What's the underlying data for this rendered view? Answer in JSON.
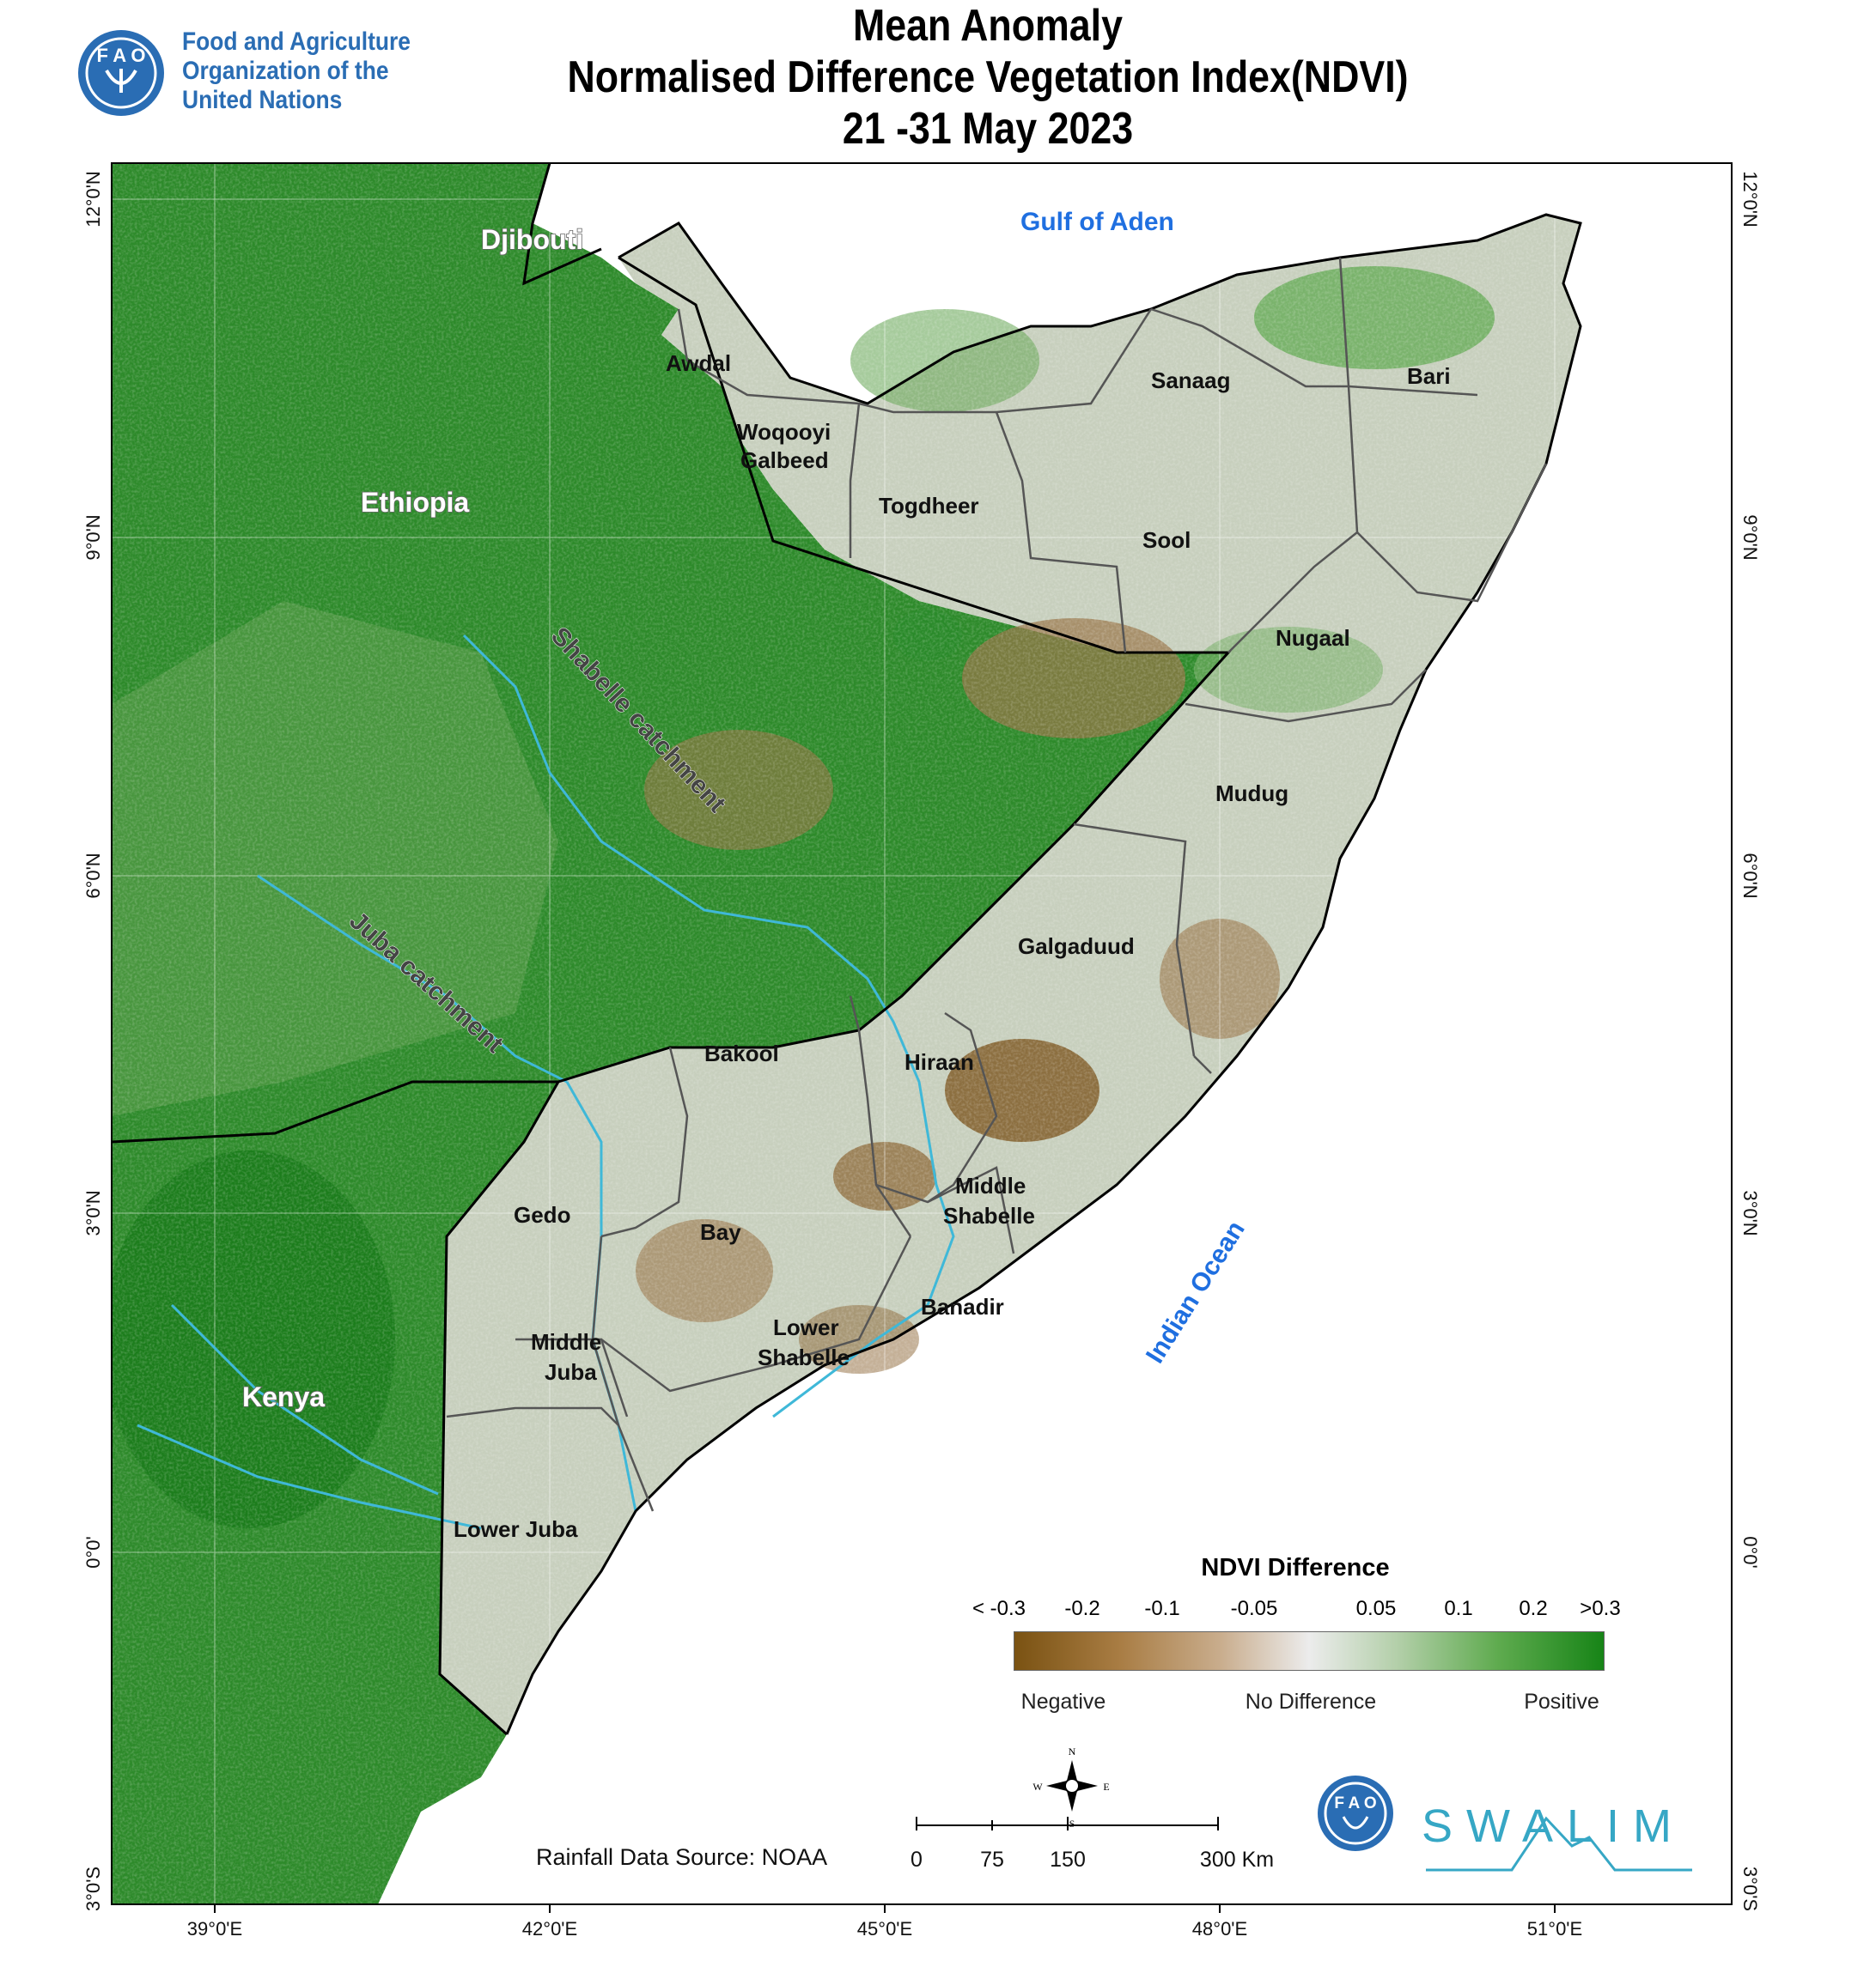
{
  "org": {
    "name_line1": "Food and Agriculture",
    "name_line2": "Organization of the",
    "name_line3": "United Nations",
    "logo_letters": "FAO",
    "logo_motto": "FIAT PANIS"
  },
  "title": {
    "line1": "Mean Anomaly",
    "line2": "Normalised Difference Vegetation Index(NDVI)",
    "line3": "21 -31 May 2023"
  },
  "water_bodies": {
    "gulf": "Gulf of Aden",
    "ocean": "Indian Ocean"
  },
  "countries": {
    "djibouti": "Djibouti",
    "ethiopia": "Ethiopia",
    "kenya": "Kenya"
  },
  "catchments": {
    "shabelle": "Shabelle catchment",
    "juba": "Juba catchment"
  },
  "regions": {
    "awdal": "Awdal",
    "woqooyi_1": "Woqooyi",
    "woqooyi_2": "Galbeed",
    "sanaag": "Sanaag",
    "bari": "Bari",
    "togdheer": "Togdheer",
    "sool": "Sool",
    "nugaal": "Nugaal",
    "mudug": "Mudug",
    "galgaduud": "Galgaduud",
    "bakool": "Bakool",
    "hiraan": "Hiraan",
    "middle_shabelle_1": "Middle",
    "middle_shabelle_2": "Shabelle",
    "gedo": "Gedo",
    "bay": "Bay",
    "banadir": "Banadir",
    "lower_shabelle_1": "Lower",
    "lower_shabelle_2": "Shabelle",
    "middle_juba_1": "Middle",
    "middle_juba_2": "Juba",
    "lower_juba": "Lower Juba"
  },
  "axes": {
    "lon_ticks": [
      "39°0'E",
      "42°0'E",
      "45°0'E",
      "48°0'E",
      "51°0'E"
    ],
    "lat_ticks": [
      "12°0'N",
      "9°0'N",
      "6°0'N",
      "3°0'N",
      "0°0'",
      "3°0'S"
    ]
  },
  "legend": {
    "title": "NDVI Difference",
    "ticks": [
      "< -0.3",
      "-0.2",
      "-0.1",
      "-0.05",
      "0.05",
      "0.1",
      "0.2",
      ">0.3"
    ],
    "captions": [
      "Negative",
      "No Difference",
      "Positive"
    ],
    "colors": {
      "negative": "#7a5212",
      "neutral": "#ececec",
      "positive": "#178417"
    }
  },
  "compass": {
    "n": "N",
    "s": "S",
    "e": "E",
    "w": "W"
  },
  "scale_bar": {
    "labels": [
      "0",
      "75",
      "150",
      "300 Km"
    ]
  },
  "source": "Rainfall Data Source: NOAA",
  "partner": "SWALIM",
  "colors": {
    "land_positive": "#1e7d1e",
    "land_neutral": "#dfe3da",
    "land_negative": "#8b6330",
    "river": "#3fb8d8",
    "water_label": "#1f6fe0",
    "org_text": "#2a6db4"
  }
}
